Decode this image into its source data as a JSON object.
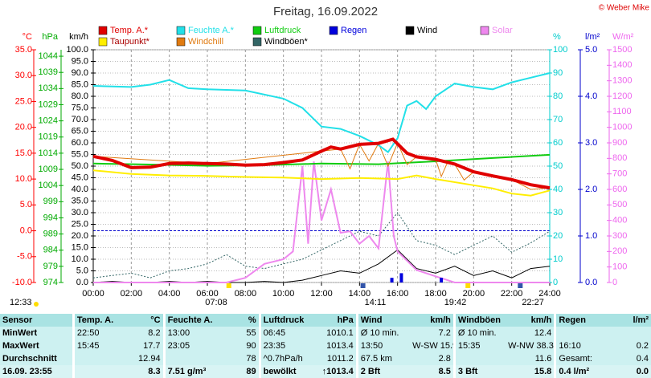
{
  "chart_data": {
    "type": "line",
    "title": "Freitag, 16.09.2022",
    "copyright": "© Weber Mike",
    "xlim": [
      0,
      24
    ],
    "xticks": [
      {
        "value": 0,
        "label": "00:00"
      },
      {
        "value": 2,
        "label": "02:00"
      },
      {
        "value": 4,
        "label": "04:00"
      },
      {
        "value": 6,
        "label": "06:00"
      },
      {
        "value": 8,
        "label": "08:00"
      },
      {
        "value": 10,
        "label": "10:00"
      },
      {
        "value": 12,
        "label": "12:00"
      },
      {
        "value": 14,
        "label": "14:00"
      },
      {
        "value": 16,
        "label": "16:00"
      },
      {
        "value": 18,
        "label": "18:00"
      },
      {
        "value": 20,
        "label": "20:00"
      },
      {
        "value": 22,
        "label": "22:00"
      },
      {
        "value": 24,
        "label": "24:00"
      }
    ],
    "grid": true,
    "axes": {
      "temp": {
        "label": "°C",
        "color": "#ff0000",
        "ylim": [
          -10,
          35
        ],
        "yticks": [
          {
            "value": -10,
            "label": "-10.0"
          },
          {
            "value": -5,
            "label": "-5.0"
          },
          {
            "value": 0,
            "label": "0.0"
          },
          {
            "value": 5,
            "label": "5.0"
          },
          {
            "value": 10,
            "label": "10.0"
          },
          {
            "value": 15,
            "label": "15.0"
          },
          {
            "value": 20,
            "label": "20.0"
          },
          {
            "value": 25,
            "label": "25.0"
          },
          {
            "value": 30,
            "label": "30.0"
          },
          {
            "value": 35,
            "label": "35.0"
          }
        ]
      },
      "press": {
        "label": "hPa",
        "color": "#00aa00",
        "ylim": [
          974,
          1046
        ],
        "yticks": [
          974,
          979,
          984,
          989,
          994,
          999,
          1004,
          1009,
          1014,
          1019,
          1024,
          1029,
          1034,
          1039,
          1044
        ]
      },
      "wind": {
        "label": "km/h",
        "color": "#000000",
        "ylim": [
          0,
          100
        ],
        "yticks": [
          {
            "value": 0,
            "label": "0.0"
          },
          {
            "value": 5,
            "label": "5.0"
          },
          {
            "value": 10,
            "label": "10.0"
          },
          {
            "value": 15,
            "label": "15.0"
          },
          {
            "value": 20,
            "label": "20.0"
          },
          {
            "value": 25,
            "label": "25.0"
          },
          {
            "value": 30,
            "label": "30.0"
          },
          {
            "value": 35,
            "label": "35.0"
          },
          {
            "value": 40,
            "label": "40.0"
          },
          {
            "value": 45,
            "label": "45.0"
          },
          {
            "value": 50,
            "label": "50.0"
          },
          {
            "value": 55,
            "label": "55.0"
          },
          {
            "value": 60,
            "label": "60.0"
          },
          {
            "value": 65,
            "label": "65.0"
          },
          {
            "value": 70,
            "label": "70.0"
          },
          {
            "value": 75,
            "label": "75.0"
          },
          {
            "value": 80,
            "label": "80.0"
          },
          {
            "value": 85,
            "label": "85.0"
          },
          {
            "value": 90,
            "label": "90.0"
          },
          {
            "value": 95,
            "label": "95.0"
          },
          {
            "value": 100,
            "label": "100.0"
          }
        ]
      },
      "hum": {
        "label": "%",
        "color": "#00cccc",
        "ylim": [
          0,
          100
        ],
        "yticks": [
          0,
          10,
          20,
          30,
          40,
          50,
          60,
          70,
          80,
          90,
          100
        ]
      },
      "rain": {
        "label": "l/m²",
        "color": "#0000cc",
        "ylim": [
          0,
          5
        ],
        "yticks": [
          {
            "value": 0,
            "label": "0.0"
          },
          {
            "value": 1,
            "label": "1.0"
          },
          {
            "value": 2,
            "label": "2.0"
          },
          {
            "value": 3,
            "label": "3.0"
          },
          {
            "value": 4,
            "label": "4.0"
          },
          {
            "value": 5,
            "label": "5.0"
          }
        ]
      },
      "solar": {
        "label": "W/m²",
        "color": "#ee66ee",
        "ylim": [
          0,
          1500
        ],
        "yticks": [
          0,
          100,
          200,
          300,
          400,
          500,
          600,
          700,
          800,
          900,
          1000,
          1100,
          1200,
          1300,
          1400,
          1500
        ]
      }
    },
    "series": [
      {
        "name": "Temp. A.*",
        "color": "#e00000",
        "axis": "temp",
        "x": [
          0,
          1,
          2,
          3,
          4,
          5,
          6,
          7,
          8,
          9,
          10,
          11,
          12,
          12.5,
          13,
          14,
          15,
          15.75,
          16,
          16.5,
          17,
          18,
          19,
          20,
          21,
          22,
          23,
          24
        ],
        "values": [
          14.4,
          13.6,
          12.2,
          12.3,
          13.0,
          13.1,
          13.0,
          12.9,
          12.7,
          12.8,
          13.2,
          13.7,
          15.4,
          16.2,
          15.8,
          16.7,
          16.9,
          17.7,
          16.8,
          15.0,
          14.3,
          13.8,
          12.9,
          11.4,
          10.6,
          9.9,
          8.9,
          8.3
        ]
      },
      {
        "name": "Feuchte A.*",
        "color": "#22e0e8",
        "axis": "hum",
        "x": [
          0,
          2,
          3,
          4,
          5,
          6,
          8,
          10,
          11,
          12,
          13,
          14,
          15,
          15.5,
          16,
          16.5,
          17,
          17.5,
          18,
          19,
          20,
          21,
          22,
          23,
          24
        ],
        "values": [
          84.5,
          84,
          85,
          87,
          83.5,
          83,
          82.5,
          79,
          75,
          67,
          66,
          63,
          59,
          56,
          62,
          76,
          78,
          74.5,
          80,
          85.5,
          84,
          83,
          86,
          88,
          90
        ]
      },
      {
        "name": "Luftdruck",
        "color": "#11cc11",
        "axis": "press",
        "x": [
          0,
          3,
          6,
          9,
          12,
          15,
          18,
          21,
          24
        ],
        "values": [
          1010.8,
          1010.5,
          1010.1,
          1010.3,
          1010.8,
          1010.6,
          1011.5,
          1012.5,
          1013.5
        ]
      },
      {
        "name": "Regen",
        "color": "#0000dd",
        "axis": "rain",
        "mark": "bar",
        "x": [
          15.7,
          16.2,
          18.3
        ],
        "values": [
          0.1,
          0.2,
          0.1
        ]
      },
      {
        "name": "Wind",
        "color": "#000000",
        "axis": "wind",
        "x": [
          0,
          1,
          2,
          3,
          4,
          5,
          6,
          7,
          8,
          9,
          10,
          11,
          12,
          13,
          14,
          15,
          16,
          17,
          18,
          19,
          20,
          21,
          22,
          23,
          24
        ],
        "values": [
          0,
          0.5,
          0,
          0,
          0.5,
          0,
          0.5,
          0,
          0,
          0.5,
          0,
          1,
          3,
          5,
          4,
          8,
          14,
          6,
          4,
          7,
          3,
          5,
          2,
          6,
          7
        ]
      },
      {
        "name": "Solar",
        "color": "#ee88ee",
        "axis": "solar",
        "x": [
          0,
          7,
          8,
          9,
          10,
          10.5,
          11,
          11.3,
          11.6,
          12,
          12.5,
          13,
          13.5,
          14,
          14.5,
          15,
          15.5,
          15.8,
          16,
          17,
          18,
          18.5,
          19,
          24
        ],
        "values": [
          0,
          0,
          30,
          120,
          150,
          200,
          750,
          250,
          780,
          400,
          600,
          320,
          330,
          250,
          300,
          220,
          780,
          300,
          200,
          80,
          40,
          20,
          0,
          0
        ]
      },
      {
        "name": "Taupunkt*",
        "color": "#ffee00",
        "axis": "temp",
        "x": [
          0,
          2,
          4,
          6,
          8,
          10,
          12,
          14,
          16,
          17,
          18,
          20,
          21,
          22,
          23,
          24
        ],
        "values": [
          11.7,
          11.0,
          10.7,
          10.6,
          10.4,
          10.3,
          10.0,
          10.2,
          10.0,
          10.7,
          10.0,
          8.8,
          8.2,
          7.2,
          6.8,
          7.8
        ]
      },
      {
        "name": "Windchill",
        "color": "#e07a10",
        "axis": "temp",
        "x": [
          0,
          6,
          12,
          13,
          13.5,
          14,
          14.5,
          15,
          15.5,
          16,
          16.5,
          17,
          18,
          18.3,
          18.6,
          19,
          19.5,
          20,
          21,
          22,
          23,
          24
        ],
        "values": [
          14.4,
          13.0,
          15.4,
          15.8,
          12.0,
          16.7,
          13.5,
          16.9,
          12.5,
          17.0,
          12.8,
          14.3,
          13.8,
          10.5,
          13.0,
          12.9,
          9.8,
          11.4,
          10.6,
          9.9,
          8.0,
          8.3
        ]
      },
      {
        "name": "Windböen*",
        "color": "#336666",
        "axis": "wind",
        "dash": true,
        "x": [
          0,
          1,
          2,
          3,
          4,
          5,
          6,
          7,
          8,
          9,
          10,
          11,
          12,
          13,
          14,
          15,
          16,
          17,
          18,
          19,
          20,
          21,
          22,
          23,
          24
        ],
        "values": [
          2,
          3,
          4,
          2,
          5,
          6,
          8,
          12,
          7,
          6,
          8,
          10,
          14,
          18,
          22,
          20,
          30,
          18,
          16,
          12,
          16,
          20,
          13,
          17,
          22
        ]
      }
    ],
    "annotations": [
      {
        "text": "12:33"
      },
      {
        "text": "07:08",
        "x": 7.13
      },
      {
        "text": "14:11",
        "x": 14.18
      },
      {
        "text": "19:42",
        "x": 19.7
      },
      {
        "text": "22:27",
        "x": 22.45
      }
    ]
  },
  "table": {
    "header": [
      "Sensor",
      "Temp. A.",
      "°C",
      "Feuchte A.",
      "%",
      "Luftdruck",
      "hPa",
      "Wind",
      "km/h",
      "Windböen",
      "km/h",
      "Regen",
      "l/m²"
    ],
    "rows": [
      [
        "MinWert",
        "22:50",
        "8.2",
        "13:00",
        "55",
        "06:45",
        "1010.1",
        "Ø 10 min.",
        "7.2",
        "Ø 10 min.",
        "12.4",
        null,
        null
      ],
      [
        "MaxWert",
        "15:45",
        "17.7",
        "23:05",
        "90",
        "23:35",
        "1013.4",
        "13:50",
        "W-SW 15.9",
        "15:35",
        "W-NW 38.3",
        "16:10",
        "0.2"
      ],
      [
        "Durchschnitt",
        null,
        "12.94",
        null,
        "78",
        "^0.7hPa/h",
        "1011.2",
        "67.5 km",
        "2.8",
        null,
        "11.6",
        "Gesamt:",
        "0.4"
      ],
      [
        "16.09. 23:55",
        null,
        "8.3",
        "7.51 g/m³",
        "89",
        "bewölkt",
        "↑1013.4",
        "2 Bft",
        "8.5",
        "3 Bft",
        "15.8",
        "0.4 l/m²",
        "0.0"
      ]
    ]
  }
}
